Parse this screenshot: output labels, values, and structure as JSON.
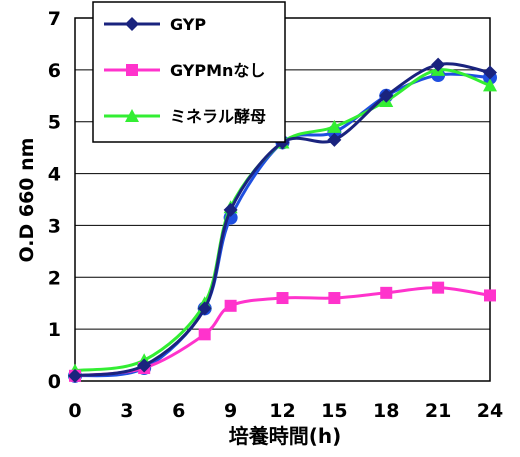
{
  "chart_data": {
    "type": "line",
    "title": "",
    "xlabel": "培養時間(h)",
    "ylabel": "O.D 660 nm",
    "xlim": [
      0,
      24
    ],
    "ylim": [
      0,
      7
    ],
    "x_ticks": [
      "0",
      "3",
      "6",
      "9",
      "12",
      "15",
      "18",
      "21",
      "24"
    ],
    "y_ticks": [
      "0",
      "1",
      "2",
      "3",
      "4",
      "5",
      "6",
      "7"
    ],
    "grid": "horizontal",
    "legend_position": "top-left",
    "series": [
      {
        "name": "GYP",
        "color": "#1a237e",
        "marker": "diamond",
        "x": [
          0,
          4,
          7.5,
          9,
          12,
          15,
          18,
          21,
          24
        ],
        "y": [
          0.1,
          0.3,
          1.4,
          3.3,
          4.6,
          4.65,
          5.5,
          6.1,
          5.95
        ]
      },
      {
        "name": "GYPMnなし",
        "color": "#ff33cc",
        "marker": "square",
        "x": [
          0,
          4,
          7.5,
          9,
          12,
          15,
          18,
          21,
          24
        ],
        "y": [
          0.1,
          0.25,
          0.9,
          1.45,
          1.6,
          1.6,
          1.7,
          1.8,
          1.65
        ]
      },
      {
        "name": "ミネラル酵母",
        "color": "#33ee33",
        "marker": "triangle",
        "x": [
          0,
          4,
          7.5,
          9,
          12,
          15,
          18,
          21,
          24
        ],
        "y": [
          0.2,
          0.4,
          1.5,
          3.35,
          4.6,
          4.9,
          5.4,
          6.0,
          5.7
        ]
      },
      {
        "name": "",
        "color": "#1f4fe0",
        "marker": "circle",
        "x": [
          0,
          4,
          7.5,
          9,
          12,
          15,
          18,
          21,
          24
        ],
        "y": [
          0.1,
          0.25,
          1.4,
          3.15,
          4.6,
          4.8,
          5.5,
          5.9,
          5.85
        ]
      }
    ]
  }
}
